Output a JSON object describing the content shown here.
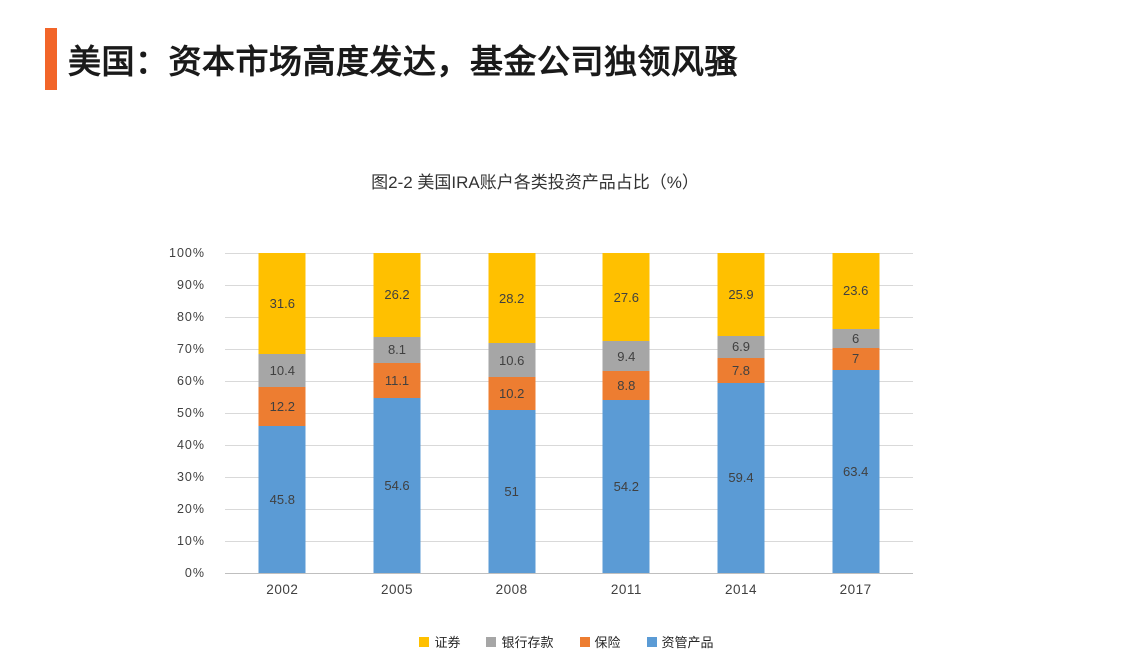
{
  "header": {
    "title": "美国：资本市场高度发达，基金公司独领风骚",
    "accent_color": "#F26529",
    "title_color": "#1A1A1A"
  },
  "chart_data": {
    "type": "bar",
    "stacked": true,
    "title": "图2-2 美国IRA账户各类投资产品占比（%）",
    "categories": [
      "2002",
      "2005",
      "2008",
      "2011",
      "2014",
      "2017"
    ],
    "series": [
      {
        "name": "证券",
        "color": "#FFC000",
        "values": [
          31.6,
          26.2,
          28.2,
          27.6,
          25.9,
          23.6
        ]
      },
      {
        "name": "银行存款",
        "color": "#A6A6A6",
        "values": [
          10.4,
          8.1,
          10.6,
          9.4,
          6.9,
          6
        ]
      },
      {
        "name": "保险",
        "color": "#ED7D31",
        "values": [
          12.2,
          11.1,
          10.2,
          8.8,
          7.8,
          7
        ]
      },
      {
        "name": "资管产品",
        "color": "#5B9BD5",
        "values": [
          45.8,
          54.6,
          51,
          54.2,
          59.4,
          63.4
        ]
      }
    ],
    "y_ticks": [
      "100%",
      "90%",
      "80%",
      "70%",
      "60%",
      "50%",
      "40%",
      "30%",
      "20%",
      "10%",
      "0%"
    ],
    "ylim": [
      0,
      100
    ],
    "grid": true,
    "gridline_color": "#D9D9D9",
    "axis_line_color": "#BFBFBF",
    "data_label_color": "#404040",
    "legend_position": "bottom"
  }
}
